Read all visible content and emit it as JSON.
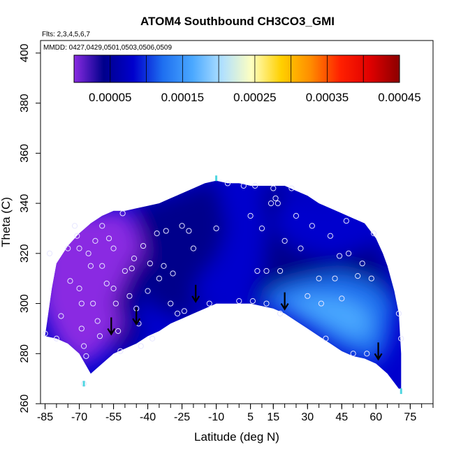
{
  "chart_data": {
    "type": "heatmap",
    "title": "ATOM4 Southbound CH3CO3_GMI",
    "flights_text": "Flts: 2,3,4,5,6,7",
    "dates_text": "MMDD: 0427,0429,0501,0503,0506,0509",
    "xlabel": "Latitude (deg N)",
    "ylabel": "Theta (C)",
    "xlim": [
      -87,
      85
    ],
    "ylim": [
      260,
      405
    ],
    "x_ticks": [
      -85,
      -70,
      -55,
      -40,
      -25,
      -10,
      5,
      15,
      30,
      45,
      60,
      75
    ],
    "x_tick_labels": [
      "-85",
      "-70",
      "-55",
      "-40",
      "-25",
      "-10",
      "5",
      "15",
      "30",
      "45",
      "60",
      "75"
    ],
    "y_ticks": [
      260,
      280,
      300,
      320,
      340,
      360,
      380,
      400
    ],
    "y_tick_labels": [
      "260",
      "280",
      "300",
      "320",
      "340",
      "360",
      "380",
      "400"
    ],
    "colorbar": {
      "range": [
        0,
        0.00045
      ],
      "tick_values": [
        5e-05,
        0.00015,
        0.00025,
        0.00035,
        0.00045
      ],
      "tick_labels": [
        "0.00005",
        "0.00015",
        "0.00025",
        "0.00035",
        "0.00045"
      ],
      "colors": [
        "#8a2be2",
        "#00008b",
        "#0000cd",
        "#1e6ff0",
        "#4aa8ff",
        "#b0e0ff",
        "#ffffc0",
        "#ffd000",
        "#ff8c00",
        "#ff2000",
        "#e00000",
        "#8b0000"
      ]
    },
    "coverage_bottom": [
      [
        -85,
        287
      ],
      [
        -80,
        286
      ],
      [
        -75,
        284
      ],
      [
        -70,
        280
      ],
      [
        -65,
        272
      ],
      [
        -60,
        276
      ],
      [
        -55,
        280
      ],
      [
        -50,
        282
      ],
      [
        -45,
        284
      ],
      [
        -40,
        287
      ],
      [
        -35,
        289
      ],
      [
        -30,
        292
      ],
      [
        -25,
        294
      ],
      [
        -20,
        296
      ],
      [
        -15,
        298
      ],
      [
        -10,
        300
      ],
      [
        -5,
        300
      ],
      [
        0,
        300
      ],
      [
        5,
        300
      ],
      [
        10,
        299
      ],
      [
        15,
        298
      ],
      [
        20,
        296
      ],
      [
        25,
        293
      ],
      [
        30,
        290
      ],
      [
        35,
        287
      ],
      [
        40,
        284
      ],
      [
        45,
        281
      ],
      [
        50,
        279
      ],
      [
        55,
        278
      ],
      [
        60,
        276
      ],
      [
        65,
        272
      ],
      [
        70,
        266
      ]
    ],
    "coverage_top": [
      [
        -85,
        287
      ],
      [
        -82,
        306
      ],
      [
        -80,
        316
      ],
      [
        -75,
        323
      ],
      [
        -70,
        328
      ],
      [
        -65,
        332
      ],
      [
        -60,
        335
      ],
      [
        -55,
        337
      ],
      [
        -50,
        337
      ],
      [
        -45,
        338
      ],
      [
        -40,
        339
      ],
      [
        -35,
        340
      ],
      [
        -30,
        342
      ],
      [
        -25,
        344
      ],
      [
        -20,
        346
      ],
      [
        -15,
        348
      ],
      [
        -10,
        349
      ],
      [
        -5,
        348
      ],
      [
        0,
        348
      ],
      [
        5,
        347
      ],
      [
        10,
        347
      ],
      [
        15,
        347
      ],
      [
        20,
        347
      ],
      [
        25,
        345
      ],
      [
        30,
        343
      ],
      [
        35,
        340
      ],
      [
        40,
        338
      ],
      [
        45,
        336
      ],
      [
        50,
        334
      ],
      [
        55,
        332
      ],
      [
        60,
        326
      ],
      [
        63,
        320
      ],
      [
        65,
        315
      ],
      [
        68,
        305
      ],
      [
        70,
        296
      ],
      [
        71,
        280
      ],
      [
        71,
        266
      ]
    ],
    "regions": [
      {
        "level": 2e-05,
        "points": [
          [
            -87,
            300
          ],
          [
            -87,
            340
          ],
          [
            -65,
            336
          ],
          [
            -50,
            338
          ],
          [
            -45,
            330
          ],
          [
            -40,
            314
          ],
          [
            -45,
            300
          ],
          [
            -50,
            292
          ],
          [
            -55,
            288
          ],
          [
            -60,
            280
          ],
          [
            -70,
            275
          ],
          [
            -80,
            285
          ]
        ]
      },
      {
        "level": 3e-05,
        "points": [
          [
            -55,
            300
          ],
          [
            -45,
            320
          ],
          [
            -40,
            312
          ],
          [
            -44,
            298
          ],
          [
            -50,
            290
          ]
        ]
      },
      {
        "level": 6e-05,
        "points": [
          [
            -45,
            338
          ],
          [
            -20,
            346
          ],
          [
            -10,
            349
          ],
          [
            5,
            347
          ],
          [
            20,
            347
          ],
          [
            30,
            343
          ],
          [
            45,
            336
          ],
          [
            60,
            326
          ],
          [
            70,
            296
          ],
          [
            65,
            300
          ],
          [
            50,
            303
          ],
          [
            35,
            308
          ],
          [
            20,
            305
          ],
          [
            5,
            300
          ],
          [
            -10,
            300
          ],
          [
            -25,
            294
          ],
          [
            -40,
            300
          ]
        ]
      },
      {
        "level": 9e-05,
        "points": [
          [
            -10,
            349
          ],
          [
            -5,
            330
          ],
          [
            -10,
            318
          ],
          [
            -18,
            310
          ],
          [
            -20,
            300
          ],
          [
            -10,
            300
          ],
          [
            5,
            300
          ],
          [
            10,
            312
          ],
          [
            12,
            330
          ],
          [
            10,
            347
          ]
        ]
      },
      {
        "level": 0.0001,
        "points": [
          [
            15,
            330
          ],
          [
            25,
            322
          ],
          [
            40,
            318
          ],
          [
            55,
            322
          ],
          [
            60,
            326
          ],
          [
            50,
            334
          ],
          [
            35,
            340
          ],
          [
            20,
            345
          ]
        ]
      },
      {
        "level": 0.00012,
        "points": [
          [
            10,
            299
          ],
          [
            20,
            296
          ],
          [
            30,
            290
          ],
          [
            45,
            281
          ],
          [
            55,
            278
          ],
          [
            60,
            276
          ],
          [
            65,
            284
          ],
          [
            68,
            300
          ],
          [
            60,
            308
          ],
          [
            45,
            312
          ],
          [
            30,
            310
          ],
          [
            15,
            306
          ]
        ]
      },
      {
        "level": 0.00016,
        "points": [
          [
            18,
            300
          ],
          [
            30,
            296
          ],
          [
            42,
            290
          ],
          [
            52,
            286
          ],
          [
            58,
            288
          ],
          [
            56,
            298
          ],
          [
            46,
            302
          ],
          [
            30,
            303
          ]
        ]
      },
      {
        "level": 4e-05,
        "points": [
          [
            -55,
            280
          ],
          [
            -50,
            282
          ],
          [
            -45,
            284
          ],
          [
            -42,
            290
          ],
          [
            -48,
            294
          ],
          [
            -56,
            286
          ]
        ]
      }
    ],
    "observation_points": [
      [
        -85,
        288
      ],
      [
        -83,
        320
      ],
      [
        -80,
        286
      ],
      [
        -78,
        295
      ],
      [
        -75,
        322
      ],
      [
        -74,
        309
      ],
      [
        -72,
        331
      ],
      [
        -71,
        327
      ],
      [
        -70,
        306
      ],
      [
        -70,
        322
      ],
      [
        -69,
        300
      ],
      [
        -69,
        290
      ],
      [
        -68,
        283
      ],
      [
        -68,
        268
      ],
      [
        -67,
        279
      ],
      [
        -66,
        320
      ],
      [
        -65,
        315
      ],
      [
        -64,
        300
      ],
      [
        -63,
        325
      ],
      [
        -62,
        293
      ],
      [
        -61,
        287
      ],
      [
        -60,
        331
      ],
      [
        -60,
        315
      ],
      [
        -58,
        308
      ],
      [
        -57,
        326
      ],
      [
        -55,
        322
      ],
      [
        -55,
        306
      ],
      [
        -54,
        300
      ],
      [
        -53,
        289
      ],
      [
        -52,
        281
      ],
      [
        -51,
        336
      ],
      [
        -50,
        313
      ],
      [
        -48,
        303
      ],
      [
        -47,
        314
      ],
      [
        -46,
        318
      ],
      [
        -45,
        298
      ],
      [
        -44,
        292
      ],
      [
        -43,
        283
      ],
      [
        -42,
        323
      ],
      [
        -40,
        305
      ],
      [
        -39,
        316
      ],
      [
        -38,
        286
      ],
      [
        -36,
        328
      ],
      [
        -35,
        310
      ],
      [
        -33,
        315
      ],
      [
        -32,
        329
      ],
      [
        -30,
        300
      ],
      [
        -29,
        312
      ],
      [
        -27,
        296
      ],
      [
        -25,
        331
      ],
      [
        -24,
        297
      ],
      [
        -22,
        329
      ],
      [
        -20,
        322
      ],
      [
        -13,
        300
      ],
      [
        -10,
        330
      ],
      [
        -5,
        348
      ],
      [
        0,
        301
      ],
      [
        2,
        347
      ],
      [
        5,
        335
      ],
      [
        6,
        301
      ],
      [
        7,
        347
      ],
      [
        8,
        313
      ],
      [
        10,
        330
      ],
      [
        12,
        300
      ],
      [
        12,
        313
      ],
      [
        14,
        340
      ],
      [
        15,
        346
      ],
      [
        16,
        342
      ],
      [
        17,
        340
      ],
      [
        18,
        313
      ],
      [
        18,
        296
      ],
      [
        20,
        325
      ],
      [
        23,
        346
      ],
      [
        25,
        335
      ],
      [
        27,
        322
      ],
      [
        30,
        303
      ],
      [
        32,
        331
      ],
      [
        35,
        310
      ],
      [
        36,
        300
      ],
      [
        38,
        286
      ],
      [
        40,
        327
      ],
      [
        42,
        310
      ],
      [
        44,
        319
      ],
      [
        45,
        302
      ],
      [
        47,
        333
      ],
      [
        48,
        320
      ],
      [
        50,
        280
      ],
      [
        52,
        311
      ],
      [
        54,
        316
      ],
      [
        56,
        280
      ],
      [
        58,
        310
      ],
      [
        59,
        328
      ],
      [
        70,
        296
      ],
      [
        71,
        286
      ]
    ],
    "arrows": [
      [
        -56,
        290
      ],
      [
        -45,
        294
      ],
      [
        -19,
        303
      ],
      [
        20,
        300
      ],
      [
        61,
        280
      ]
    ],
    "endpoint_markers": [
      [
        -68,
        268
      ],
      [
        -10,
        350
      ],
      [
        71,
        265
      ]
    ]
  }
}
